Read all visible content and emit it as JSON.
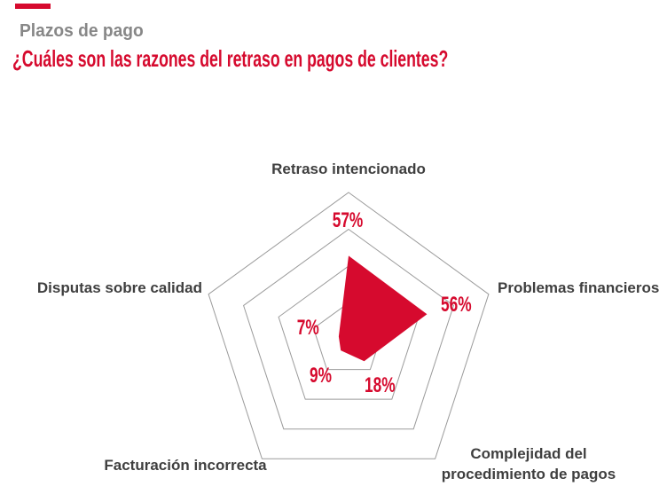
{
  "header": {
    "kicker": "Plazos de pago",
    "title": "¿Cuáles son las razones del retraso en pagos de clientes?"
  },
  "colors": {
    "accent_red": "#D60A2E",
    "kicker_gray": "#878787",
    "label_dark": "#3F3F3F",
    "grid_gray": "#9B9B9B",
    "background": "#FFFFFF"
  },
  "chart_data": {
    "type": "radar",
    "shape": "pentagon",
    "scale_max": 100,
    "ring_fractions": [
      0.25,
      0.5,
      0.75,
      1.0
    ],
    "grid": true,
    "legend": false,
    "fill_color": "#D60A2E",
    "grid_color": "#9B9B9B",
    "axes": [
      {
        "position": "top",
        "label": "Retraso intencionado",
        "value": 57,
        "value_label": "57%"
      },
      {
        "position": "right",
        "label": "Problemas financieros",
        "value": 56,
        "value_label": "56%"
      },
      {
        "position": "bottom-right",
        "label": "Complejidad del procedimiento de pagos",
        "value": 18,
        "value_label": "18%"
      },
      {
        "position": "bottom-left",
        "label": "Facturación incorrecta",
        "value": 9,
        "value_label": "9%"
      },
      {
        "position": "left",
        "label": "Disputas sobre calidad",
        "value": 7,
        "value_label": "7%"
      }
    ]
  }
}
